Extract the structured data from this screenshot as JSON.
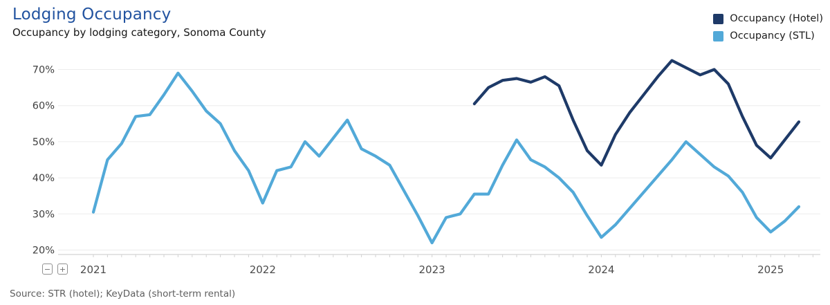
{
  "header": {
    "title": "Lodging Occupancy",
    "subtitle": "Occupancy by lodging category, Sonoma County"
  },
  "legend": [
    {
      "label": "Occupancy (Hotel)",
      "color": "#1e3a68"
    },
    {
      "label": "Occupancy (STL)",
      "color": "#52a9d8"
    }
  ],
  "controls": {
    "zoom_out_label": "−",
    "zoom_in_label": "+"
  },
  "footer": {
    "source": "Source: STR (hotel); KeyData (short-term rental)"
  },
  "chart_data": {
    "type": "line",
    "title": "Lodging Occupancy",
    "subtitle": "Occupancy by lodging category, Sonoma County",
    "grid": true,
    "legend_position": "top-right",
    "ylim": [
      20,
      70
    ],
    "y_tick_values": [
      70,
      60,
      50,
      40,
      30,
      20
    ],
    "y_tick_labels": [
      "70%",
      "60%",
      "50%",
      "40%",
      "30%",
      "20%"
    ],
    "x_year_labels": [
      "2021",
      "2022",
      "2023",
      "2024",
      "2025"
    ],
    "x_unit": "month",
    "x_range": [
      "2021-01",
      "2025-03"
    ],
    "series": [
      {
        "name": "Occupancy (STL)",
        "color": "#52a9d8",
        "start_month": "2021-01",
        "values_pct": [
          30.5,
          45,
          49.5,
          57,
          57.5,
          63,
          69,
          64,
          58.5,
          55,
          47.5,
          42,
          33,
          42,
          43,
          50,
          46,
          51,
          56,
          48,
          46,
          43.5,
          36.5,
          29.5,
          22,
          29,
          30,
          35.5,
          35.5,
          43.5,
          50.5,
          45,
          43,
          40,
          36,
          29.5,
          23.5,
          27,
          31.5,
          36,
          40.5,
          45,
          50,
          46.5,
          43,
          40.5,
          36,
          29,
          25,
          28,
          32
        ]
      },
      {
        "name": "Occupancy (Hotel)",
        "color": "#1e3a68",
        "start_month": "2023-04",
        "values_pct": [
          60.5,
          65,
          67,
          67.5,
          66.5,
          68,
          65.5,
          56,
          47.5,
          43.5,
          52,
          58,
          63,
          68,
          72.5,
          70.5,
          68.5,
          70,
          66,
          57,
          49,
          45.5,
          50.5,
          55.5
        ]
      }
    ]
  }
}
